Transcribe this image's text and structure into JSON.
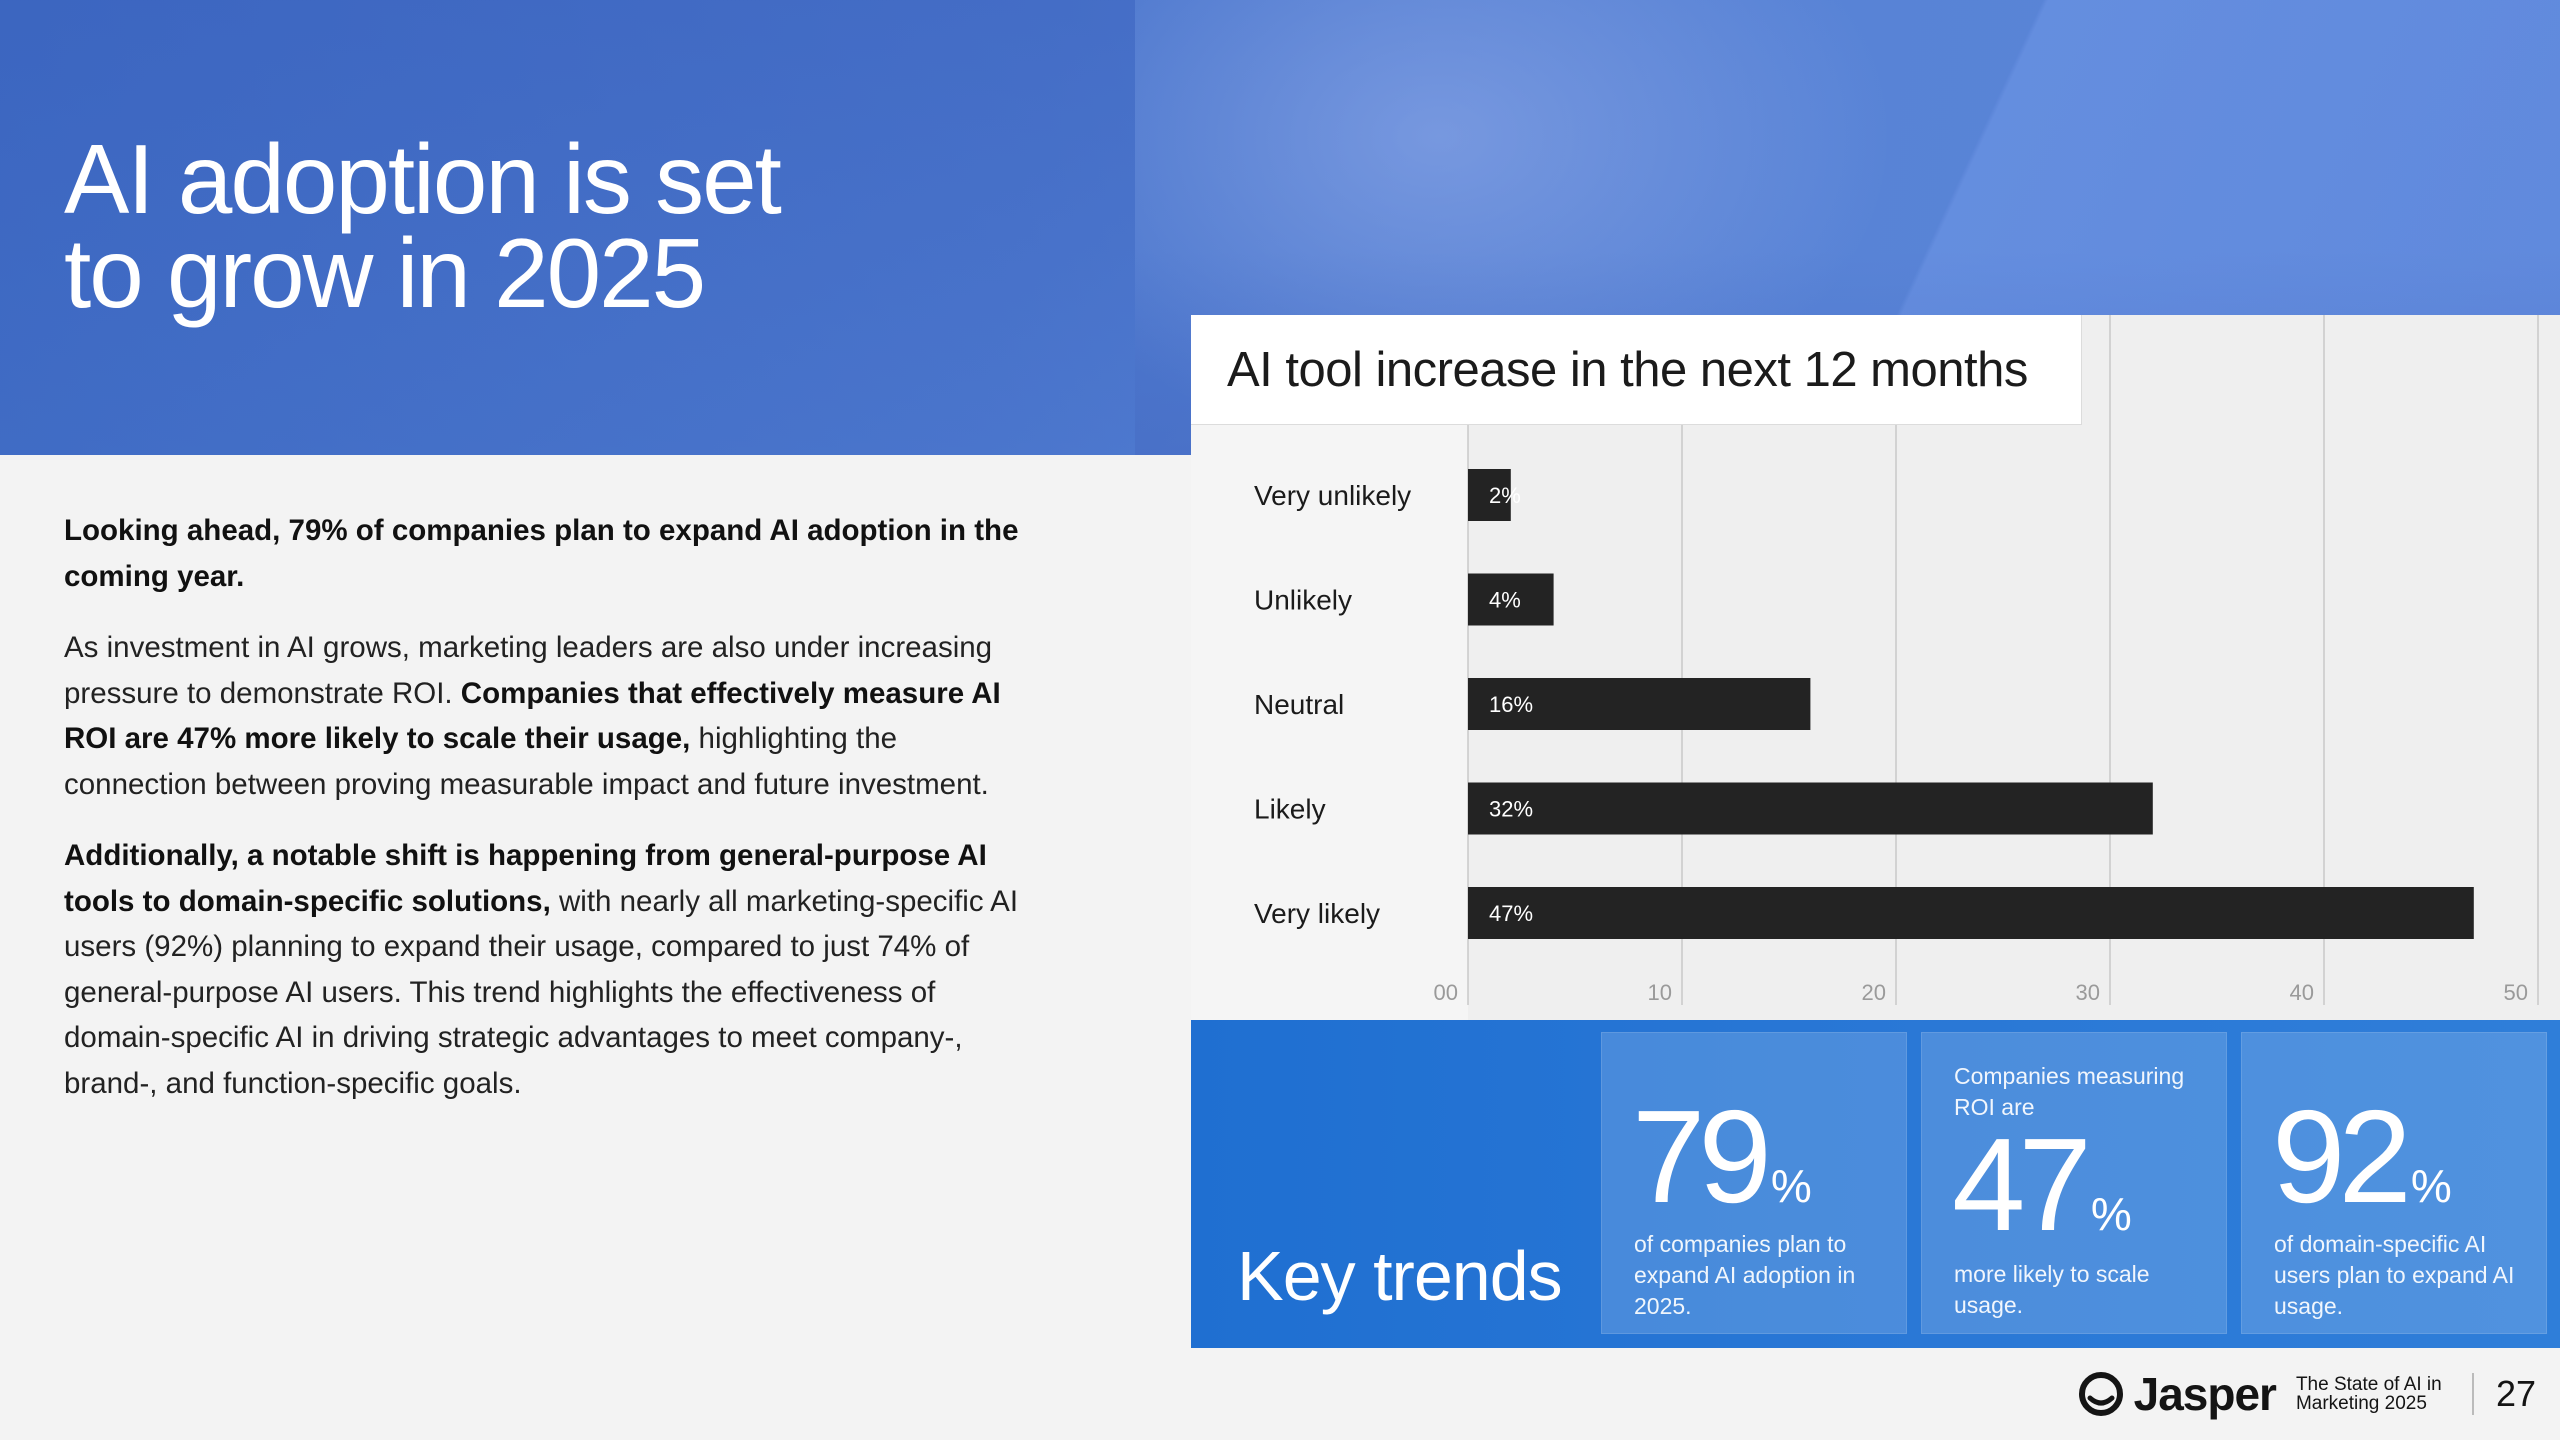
{
  "headline": {
    "line1": "AI adoption is set",
    "line2": "to grow in 2025"
  },
  "body": {
    "p1_bold": "Looking ahead, 79% of companies plan to expand AI adoption in the coming year.",
    "p2_a": "As investment in AI grows, marketing leaders are also under increasing pressure to demonstrate ROI. ",
    "p2_bold": "Companies that effectively measure AI ROI are 47% more likely to scale their usage,",
    "p2_b": " highlighting the connection between proving measurable impact and future investment.",
    "p3_bold": "Additionally, a notable shift is happening from general-purpose AI tools to domain-specific solutions,",
    "p3_b": " with nearly all marketing-specific AI users (92%) planning to expand their usage, compared to just 74% of general-purpose AI users. This trend highlights the effectiveness of domain-specific AI in driving strategic advantages to meet company-, brand-, and function-specific goals."
  },
  "chart_data": {
    "type": "bar",
    "orientation": "horizontal",
    "title": "AI tool increase in the next 12 months",
    "categories": [
      "Very unlikely",
      "Unlikely",
      "Neutral",
      "Likely",
      "Very likely"
    ],
    "values": [
      2,
      4,
      16,
      32,
      47
    ],
    "value_labels": [
      "2%",
      "4%",
      "16%",
      "32%",
      "47%"
    ],
    "xlim": [
      0,
      50
    ],
    "xticks": [
      0,
      10,
      20,
      30,
      40,
      50
    ],
    "xtick_labels": [
      "00",
      "10",
      "20",
      "30",
      "40",
      "50"
    ],
    "grid": true,
    "bar_color": "#232323",
    "label_color": "#ffffff"
  },
  "trends": {
    "title": "Key trends",
    "cards": [
      {
        "pre": "",
        "value": "79",
        "unit": "%",
        "desc": "of companies plan to expand AI adoption in 2025."
      },
      {
        "pre": "Companies measuring ROI are",
        "value": "47",
        "unit": "%",
        "desc": "more likely to scale usage."
      },
      {
        "pre": "",
        "value": "92",
        "unit": "%",
        "desc": "of domain-specific AI users plan to expand AI usage."
      }
    ]
  },
  "footer": {
    "brand": "Jasper",
    "report_title": "The State of AI in Marketing 2025",
    "page_number": "27"
  },
  "colors": {
    "banner": "#4a75cc",
    "trends_bg": "#2a78d6",
    "bar": "#232323"
  }
}
